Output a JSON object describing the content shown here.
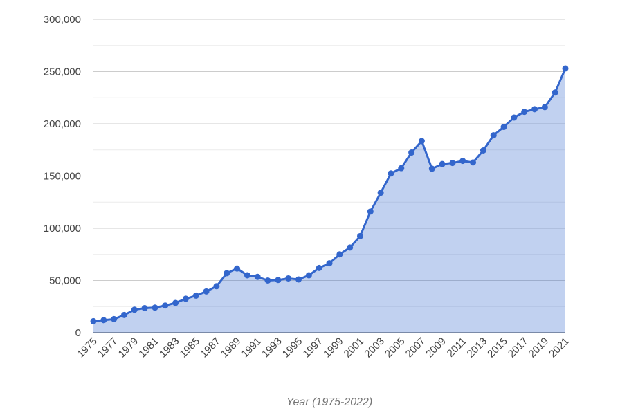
{
  "chart_data": {
    "type": "area",
    "x_label": "Year (1975-2022)",
    "x": [
      1975,
      1976,
      1977,
      1978,
      1979,
      1980,
      1981,
      1982,
      1983,
      1984,
      1985,
      1986,
      1987,
      1988,
      1989,
      1990,
      1991,
      1992,
      1993,
      1994,
      1995,
      1996,
      1997,
      1998,
      1999,
      2000,
      2001,
      2002,
      2003,
      2004,
      2005,
      2006,
      2007,
      2008,
      2009,
      2010,
      2011,
      2012,
      2013,
      2014,
      2015,
      2016,
      2017,
      2018,
      2019,
      2020,
      2021
    ],
    "values": [
      11000,
      12000,
      13000,
      17000,
      22000,
      23500,
      24000,
      26000,
      28500,
      32500,
      35500,
      39500,
      44500,
      57000,
      61500,
      55000,
      53500,
      50000,
      50500,
      52000,
      51000,
      55000,
      62000,
      66500,
      75000,
      81500,
      92500,
      116000,
      134000,
      152500,
      157500,
      172500,
      183500,
      157000,
      161500,
      162500,
      164500,
      163000,
      174500,
      189000,
      197000,
      206000,
      211500,
      214000,
      216000,
      230000,
      253000
    ],
    "color": "#3366cc",
    "xlim": [
      1975,
      2021
    ],
    "xticks": [
      1975,
      1977,
      1979,
      1981,
      1983,
      1985,
      1987,
      1989,
      1991,
      1993,
      1995,
      1997,
      1999,
      2001,
      2003,
      2005,
      2007,
      2009,
      2011,
      2013,
      2015,
      2017,
      2019,
      2021
    ],
    "ylim": [
      0,
      300000
    ],
    "yticks": [
      0,
      {
        "value": 50000,
        "label": "50,000"
      },
      {
        "value": 100000,
        "label": "100,000"
      },
      {
        "value": 150000,
        "label": "150,000"
      },
      {
        "value": 200000,
        "label": "200,000"
      },
      {
        "value": 250000,
        "label": "250,000"
      },
      {
        "value": 300000,
        "label": "300,000"
      }
    ],
    "minor_yticks": [
      25000,
      75000,
      125000,
      175000,
      225000,
      275000
    ],
    "grid": true
  }
}
